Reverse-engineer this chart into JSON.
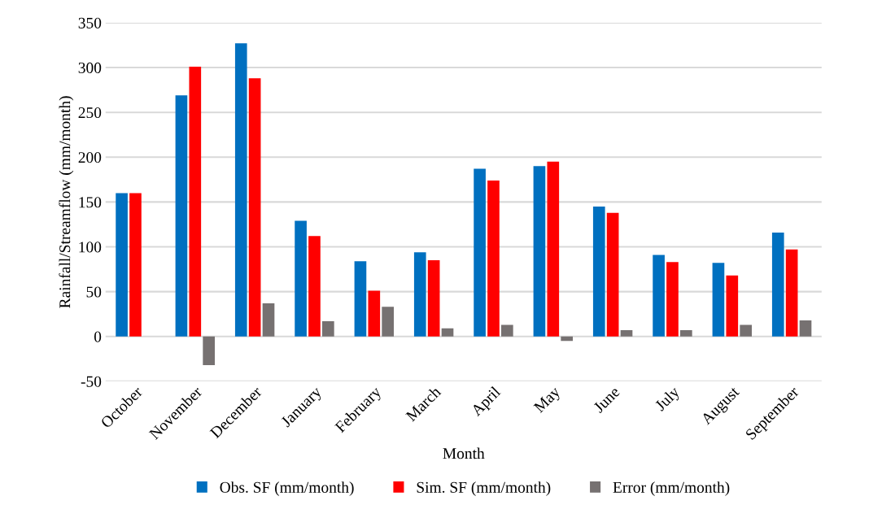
{
  "chart_data": {
    "type": "bar",
    "xlabel": "Month",
    "ylabel": "Rainfall/Streamflow (mm/month)",
    "categories": [
      "October",
      "November",
      "December",
      "January",
      "February",
      "March",
      "April",
      "May",
      "June",
      "July",
      "August",
      "September"
    ],
    "series": [
      {
        "name": "Obs. SF (mm/month)",
        "color": "#0070c0",
        "values": [
          160,
          269,
          327,
          129,
          84,
          94,
          187,
          190,
          145,
          91,
          82,
          116
        ]
      },
      {
        "name": "Sim. SF (mm/month)",
        "color": "#ff0000",
        "values": [
          160,
          301,
          288,
          112,
          51,
          85,
          174,
          195,
          138,
          83,
          68,
          97
        ]
      },
      {
        "name": "Error (mm/month)",
        "color": "#767171",
        "values": [
          0,
          -32,
          37,
          17,
          33,
          9,
          13,
          -5,
          7,
          7,
          13,
          18
        ]
      }
    ],
    "ylim": [
      -50,
      350
    ],
    "yticks": [
      -50,
      0,
      50,
      100,
      150,
      200,
      250,
      300,
      350
    ],
    "grid": "y",
    "legend": "bottom"
  }
}
